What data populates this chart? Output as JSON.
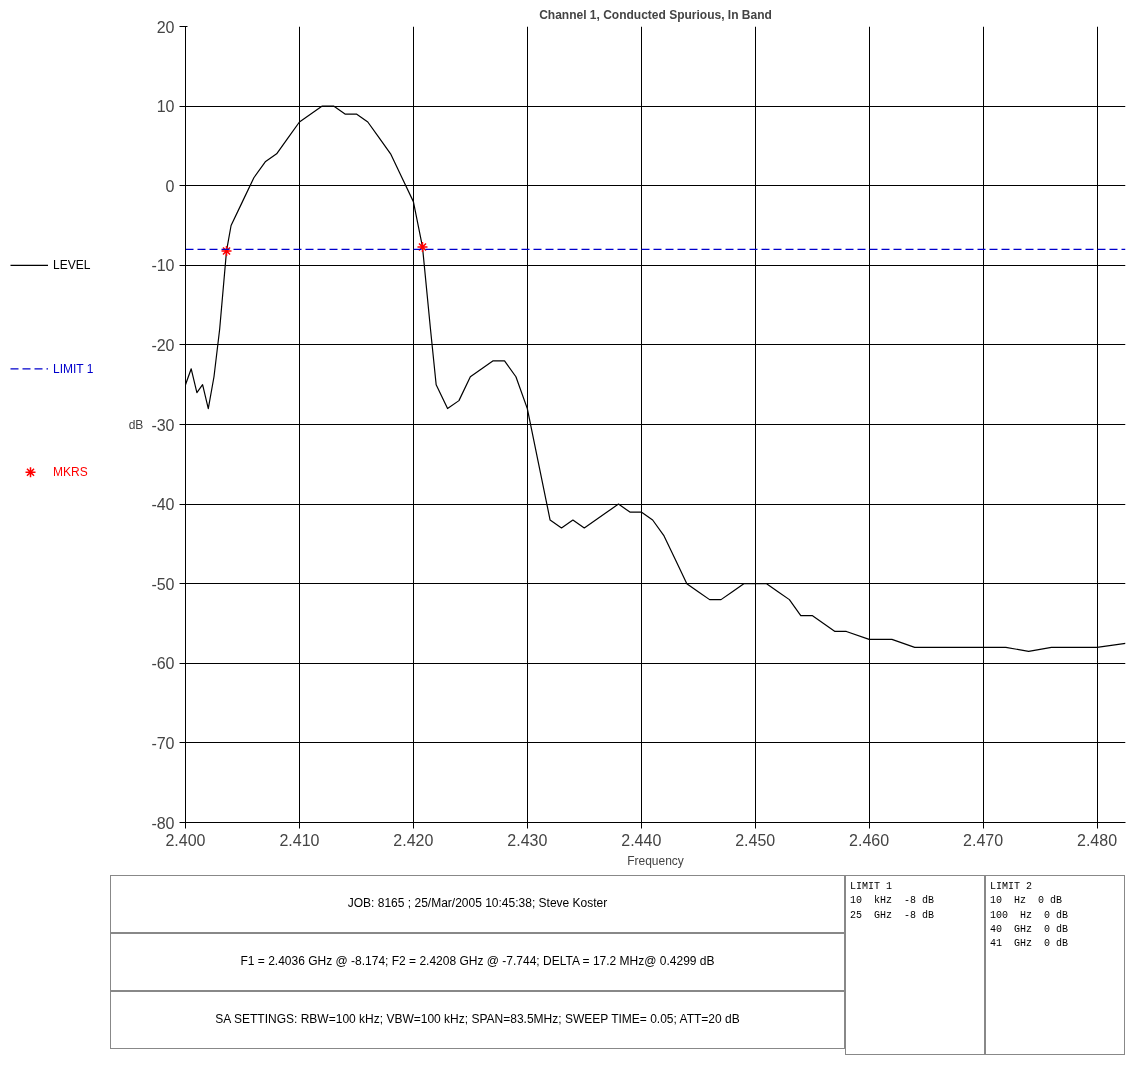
{
  "chart_data": {
    "type": "line",
    "title": "Channel 1, Conducted Spurious, In Band",
    "xlabel": "Frequency",
    "ylabel": "dB",
    "xlim": [
      2.4,
      2.4825
    ],
    "ylim": [
      -80,
      20
    ],
    "xticks": [
      {
        "value": 2.4,
        "label": "2.400"
      },
      {
        "value": 2.41,
        "label": "2.410"
      },
      {
        "value": 2.42,
        "label": "2.420"
      },
      {
        "value": 2.43,
        "label": "2.430"
      },
      {
        "value": 2.44,
        "label": "2.440"
      },
      {
        "value": 2.45,
        "label": "2.450"
      },
      {
        "value": 2.46,
        "label": "2.460"
      },
      {
        "value": 2.47,
        "label": "2.470"
      },
      {
        "value": 2.48,
        "label": "2.480"
      }
    ],
    "yticks": [
      -80,
      -70,
      -60,
      -50,
      -40,
      -30,
      -20,
      -10,
      0,
      10,
      20
    ],
    "grid": true,
    "legend": "left",
    "series": [
      {
        "name": "LEVEL",
        "color": "#000000",
        "marker": "none",
        "line_style": "solid",
        "x": [
          2.4,
          2.4005,
          2.401,
          2.4015,
          2.402,
          2.4025,
          2.403,
          2.4036,
          2.404,
          2.405,
          2.406,
          2.407,
          2.408,
          2.409,
          2.41,
          2.411,
          2.412,
          2.413,
          2.414,
          2.415,
          2.416,
          2.417,
          2.418,
          2.419,
          2.42,
          2.4208,
          2.4215,
          2.422,
          2.423,
          2.424,
          2.425,
          2.426,
          2.427,
          2.428,
          2.429,
          2.43,
          2.431,
          2.432,
          2.433,
          2.434,
          2.435,
          2.436,
          2.437,
          2.438,
          2.439,
          2.44,
          2.441,
          2.442,
          2.443,
          2.444,
          2.445,
          2.446,
          2.447,
          2.448,
          2.449,
          2.45,
          2.451,
          2.452,
          2.453,
          2.454,
          2.455,
          2.456,
          2.457,
          2.458,
          2.46,
          2.462,
          2.464,
          2.466,
          2.468,
          2.47,
          2.472,
          2.474,
          2.476,
          2.478,
          2.48,
          2.4825
        ],
        "values": [
          -25,
          -23,
          -26,
          -25,
          -28,
          -24,
          -18,
          -8.2,
          -5,
          -2,
          1,
          3,
          4,
          6,
          8,
          9,
          10,
          10,
          9,
          9,
          8,
          6,
          4,
          1,
          -2,
          -7.7,
          -18,
          -25,
          -28,
          -27,
          -24,
          -23,
          -22,
          -22,
          -24,
          -28,
          -35,
          -42,
          -43,
          -42,
          -43,
          -42,
          -41,
          -40,
          -41,
          -41,
          -42,
          -44,
          -47,
          -50,
          -51,
          -52,
          -52,
          -51,
          -50,
          -50,
          -50,
          -51,
          -52,
          -54,
          -54,
          -55,
          -56,
          -56,
          -57,
          -57,
          -58,
          -58,
          -58,
          -58,
          -58,
          -58.5,
          -58,
          -58,
          -58,
          -57.5
        ]
      },
      {
        "name": "MKRS",
        "type": "scatter",
        "color": "#ff0000",
        "marker": "cross",
        "x": [
          2.4036,
          2.4208
        ],
        "values": [
          -8.2,
          -7.7
        ]
      }
    ],
    "ref_lines": [
      {
        "axis": "y",
        "value": -8,
        "label": "LIMIT 1",
        "color": "#0000cc",
        "line_style": "dashed"
      }
    ],
    "annotations": [
      "JOB: 8165  ;  25/Mar/2005 10:45:38; Steve Koster",
      "F1 = 2.4036 GHz @ -8.174;  F2 = 2.4208 GHz @ -7.744;  DELTA = 17.2 MHz@ 0.4299 dB",
      "SA SETTINGS: RBW=100 kHz; VBW=100 kHz; SPAN=83.5MHz; SWEEP TIME= 0.05; ATT=20 dB",
      "LIMIT 1\n10  kHz  -8 dB\n25  GHz  -8 dB",
      "LIMIT 2\n10  Hz  0 dB\n100  Hz  0 dB\n40  GHz  0 dB\n41  GHz  0 dB"
    ]
  }
}
